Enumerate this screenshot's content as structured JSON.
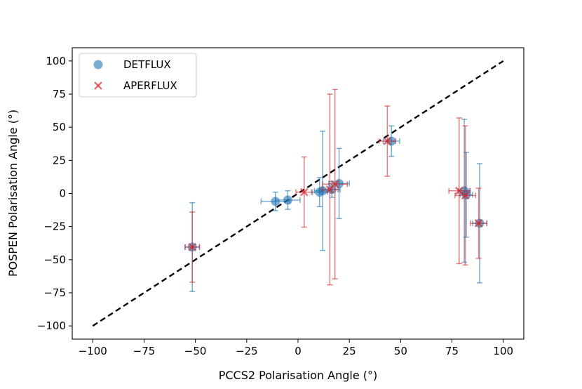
{
  "chart_data": {
    "type": "scatter",
    "xlabel": "PCCS2 Polarisation Angle (°)",
    "ylabel": "POSPEN Polarisation Angle (°)",
    "xlim": [
      -110,
      110
    ],
    "ylim": [
      -110,
      110
    ],
    "xticks": [
      -100,
      -75,
      -50,
      -25,
      0,
      25,
      50,
      75,
      100
    ],
    "yticks": [
      -100,
      -75,
      -50,
      -25,
      0,
      25,
      50,
      75,
      100
    ],
    "legend_position": "top-left",
    "reference_line": {
      "name": "one-to-one",
      "x": [
        -100,
        100
      ],
      "y": [
        -100,
        100
      ],
      "color": "#000000",
      "style": "dashed"
    },
    "series": [
      {
        "name": "DETFLUX",
        "marker": "circle",
        "color": "#1f77b4",
        "points": [
          {
            "x": -51.5,
            "y": -40.5,
            "xerr": 3.5,
            "yerr_low": 33.5,
            "yerr_high": 33.5
          },
          {
            "x": -11,
            "y": -6,
            "xerr": 7,
            "yerr_low": 7,
            "yerr_high": 7
          },
          {
            "x": -5,
            "y": -5,
            "xerr": 6,
            "yerr_low": 7,
            "yerr_high": 7
          },
          {
            "x": 10.5,
            "y": 1,
            "xerr": 4,
            "yerr_low": 11,
            "yerr_high": 11
          },
          {
            "x": 12,
            "y": 2,
            "xerr": 4,
            "yerr_low": 45,
            "yerr_high": 45
          },
          {
            "x": 16.5,
            "y": 3,
            "xerr": 4,
            "yerr_low": 6,
            "yerr_high": 6
          },
          {
            "x": 20,
            "y": 7.5,
            "xerr": 5,
            "yerr_low": 26.5,
            "yerr_high": 26.5
          },
          {
            "x": 45.5,
            "y": 39.5,
            "xerr": 4,
            "yerr_low": 11.5,
            "yerr_high": 11.5
          },
          {
            "x": 81,
            "y": 2,
            "xerr": 3,
            "yerr_low": 54,
            "yerr_high": 54
          },
          {
            "x": 82,
            "y": -1,
            "xerr": 3,
            "yerr_low": 32,
            "yerr_high": 32
          },
          {
            "x": 88.5,
            "y": -22.5,
            "xerr": 3.5,
            "yerr_low": 45,
            "yerr_high": 45
          }
        ]
      },
      {
        "name": "APERFLUX",
        "marker": "x",
        "color": "#d62728",
        "points": [
          {
            "x": -51.5,
            "y": -40.5,
            "xerr": 3.5,
            "yerr_low": 26.5,
            "yerr_high": 26.5
          },
          {
            "x": 3,
            "y": 1,
            "xerr": 4,
            "yerr_low": 26.5,
            "yerr_high": 26.5
          },
          {
            "x": 15.5,
            "y": 3,
            "xerr": 4,
            "yerr_low": 72,
            "yerr_high": 72
          },
          {
            "x": 18,
            "y": 7,
            "xerr": 6,
            "yerr_low": 71.5,
            "yerr_high": 71.5
          },
          {
            "x": 43.5,
            "y": 39.5,
            "xerr": 4,
            "yerr_low": 26.5,
            "yerr_high": 26.5
          },
          {
            "x": 78.5,
            "y": 2,
            "xerr": 5,
            "yerr_low": 55,
            "yerr_high": 55
          },
          {
            "x": 81.5,
            "y": -1.5,
            "xerr": 5,
            "yerr_low": 52.5,
            "yerr_high": 52.5
          },
          {
            "x": 88,
            "y": -22.5,
            "xerr": 4,
            "yerr_low": 26.5,
            "yerr_high": 26.5
          }
        ]
      }
    ]
  }
}
